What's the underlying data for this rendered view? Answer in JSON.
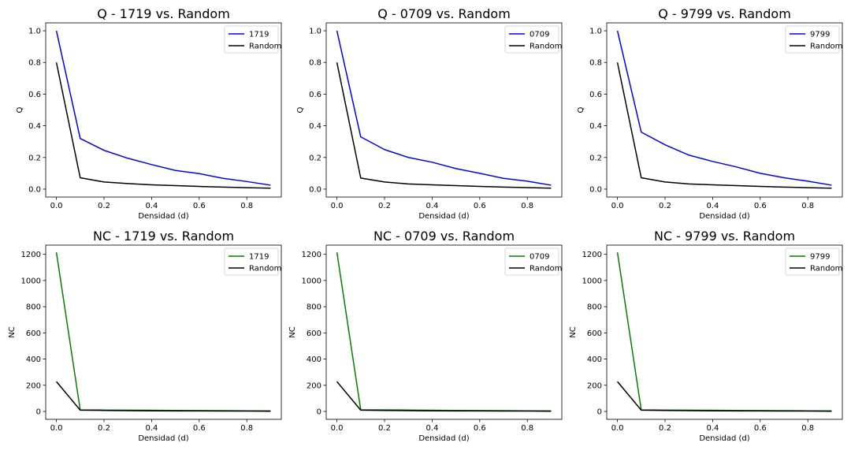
{
  "figure": {
    "background": "#ffffff"
  },
  "chart_data": [
    {
      "type": "line",
      "title": "Q - 1719 vs. Random",
      "xlabel": "Densidad (d)",
      "ylabel": "Q",
      "xlim": [
        -0.045,
        0.945
      ],
      "ylim": [
        -0.05,
        1.05
      ],
      "xticks": [
        0.0,
        0.2,
        0.4,
        0.6,
        0.8
      ],
      "xtick_labels": [
        "0.0",
        "0.2",
        "0.4",
        "0.6",
        "0.8"
      ],
      "yticks": [
        0.0,
        0.2,
        0.4,
        0.6,
        0.8,
        1.0
      ],
      "ytick_labels": [
        "0.0",
        "0.2",
        "0.4",
        "0.6",
        "0.8",
        "1.0"
      ],
      "legend_position": "top-right",
      "grid": false,
      "x": [
        0.0,
        0.1,
        0.2,
        0.3,
        0.4,
        0.5,
        0.6,
        0.7,
        0.8,
        0.9
      ],
      "series": [
        {
          "name": "1719",
          "color": "#0000ff",
          "values": [
            1.0,
            0.32,
            0.245,
            0.195,
            0.155,
            0.118,
            0.098,
            0.068,
            0.048,
            0.025
          ]
        },
        {
          "name": "Random",
          "color": "#000000",
          "values": [
            0.8,
            0.072,
            0.045,
            0.035,
            0.027,
            0.022,
            0.017,
            0.013,
            0.009,
            0.006
          ]
        }
      ]
    },
    {
      "type": "line",
      "title": "Q - 0709 vs. Random",
      "xlabel": "Densidad (d)",
      "ylabel": "Q",
      "xlim": [
        -0.045,
        0.945
      ],
      "ylim": [
        -0.05,
        1.05
      ],
      "xticks": [
        0.0,
        0.2,
        0.4,
        0.6,
        0.8
      ],
      "xtick_labels": [
        "0.0",
        "0.2",
        "0.4",
        "0.6",
        "0.8"
      ],
      "yticks": [
        0.0,
        0.2,
        0.4,
        0.6,
        0.8,
        1.0
      ],
      "ytick_labels": [
        "0.0",
        "0.2",
        "0.4",
        "0.6",
        "0.8",
        "1.0"
      ],
      "legend_position": "top-right",
      "grid": false,
      "x": [
        0.0,
        0.1,
        0.2,
        0.3,
        0.4,
        0.5,
        0.6,
        0.7,
        0.8,
        0.9
      ],
      "series": [
        {
          "name": "0709",
          "color": "#0000ff",
          "values": [
            1.0,
            0.33,
            0.25,
            0.2,
            0.17,
            0.13,
            0.1,
            0.068,
            0.05,
            0.025
          ]
        },
        {
          "name": "Random",
          "color": "#000000",
          "values": [
            0.8,
            0.07,
            0.045,
            0.033,
            0.027,
            0.022,
            0.017,
            0.013,
            0.01,
            0.006
          ]
        }
      ]
    },
    {
      "type": "line",
      "title": "Q - 9799 vs. Random",
      "xlabel": "Densidad (d)",
      "ylabel": "Q",
      "xlim": [
        -0.045,
        0.945
      ],
      "ylim": [
        -0.05,
        1.05
      ],
      "xticks": [
        0.0,
        0.2,
        0.4,
        0.6,
        0.8
      ],
      "xtick_labels": [
        "0.0",
        "0.2",
        "0.4",
        "0.6",
        "0.8"
      ],
      "yticks": [
        0.0,
        0.2,
        0.4,
        0.6,
        0.8,
        1.0
      ],
      "ytick_labels": [
        "0.0",
        "0.2",
        "0.4",
        "0.6",
        "0.8",
        "1.0"
      ],
      "legend_position": "top-right",
      "grid": false,
      "x": [
        0.0,
        0.1,
        0.2,
        0.3,
        0.4,
        0.5,
        0.6,
        0.7,
        0.8,
        0.9
      ],
      "series": [
        {
          "name": "9799",
          "color": "#0000ff",
          "values": [
            1.0,
            0.36,
            0.28,
            0.215,
            0.175,
            0.14,
            0.1,
            0.072,
            0.05,
            0.025
          ]
        },
        {
          "name": "Random",
          "color": "#000000",
          "values": [
            0.8,
            0.072,
            0.045,
            0.033,
            0.027,
            0.022,
            0.017,
            0.013,
            0.009,
            0.006
          ]
        }
      ]
    },
    {
      "type": "line",
      "title": "NC - 1719 vs. Random",
      "xlabel": "Densidad (d)",
      "ylabel": "NC",
      "xlim": [
        -0.045,
        0.945
      ],
      "ylim": [
        -60,
        1270
      ],
      "xticks": [
        0.0,
        0.2,
        0.4,
        0.6,
        0.8
      ],
      "xtick_labels": [
        "0.0",
        "0.2",
        "0.4",
        "0.6",
        "0.8"
      ],
      "yticks": [
        0,
        200,
        400,
        600,
        800,
        1000,
        1200
      ],
      "ytick_labels": [
        "0",
        "200",
        "400",
        "600",
        "800",
        "1000",
        "1200"
      ],
      "legend_position": "top-right",
      "grid": false,
      "x": [
        0.0,
        0.1,
        0.2,
        0.3,
        0.4,
        0.5,
        0.6,
        0.7,
        0.8,
        0.9
      ],
      "series": [
        {
          "name": "1719",
          "color": "#008000",
          "values": [
            1215,
            12,
            11,
            10,
            9,
            8,
            7,
            6,
            5,
            5
          ]
        },
        {
          "name": "Random",
          "color": "#000000",
          "values": [
            228,
            10,
            8,
            6,
            5,
            4,
            4,
            3,
            3,
            2
          ]
        }
      ]
    },
    {
      "type": "line",
      "title": "NC - 0709 vs. Random",
      "xlabel": "Densidad (d)",
      "ylabel": "NC",
      "xlim": [
        -0.045,
        0.945
      ],
      "ylim": [
        -60,
        1270
      ],
      "xticks": [
        0.0,
        0.2,
        0.4,
        0.6,
        0.8
      ],
      "xtick_labels": [
        "0.0",
        "0.2",
        "0.4",
        "0.6",
        "0.8"
      ],
      "yticks": [
        0,
        200,
        400,
        600,
        800,
        1000,
        1200
      ],
      "ytick_labels": [
        "0",
        "200",
        "400",
        "600",
        "800",
        "1000",
        "1200"
      ],
      "legend_position": "top-right",
      "grid": false,
      "x": [
        0.0,
        0.1,
        0.2,
        0.3,
        0.4,
        0.5,
        0.6,
        0.7,
        0.8,
        0.9
      ],
      "series": [
        {
          "name": "0709",
          "color": "#008000",
          "values": [
            1215,
            12,
            12,
            11,
            9,
            8,
            7,
            6,
            5,
            5
          ]
        },
        {
          "name": "Random",
          "color": "#000000",
          "values": [
            228,
            10,
            8,
            6,
            5,
            4,
            4,
            3,
            3,
            2
          ]
        }
      ]
    },
    {
      "type": "line",
      "title": "NC - 9799 vs. Random",
      "xlabel": "Densidad (d)",
      "ylabel": "NC",
      "xlim": [
        -0.045,
        0.945
      ],
      "ylim": [
        -60,
        1270
      ],
      "xticks": [
        0.0,
        0.2,
        0.4,
        0.6,
        0.8
      ],
      "xtick_labels": [
        "0.0",
        "0.2",
        "0.4",
        "0.6",
        "0.8"
      ],
      "yticks": [
        0,
        200,
        400,
        600,
        800,
        1000,
        1200
      ],
      "ytick_labels": [
        "0",
        "200",
        "400",
        "600",
        "800",
        "1000",
        "1200"
      ],
      "legend_position": "top-right",
      "grid": false,
      "x": [
        0.0,
        0.1,
        0.2,
        0.3,
        0.4,
        0.5,
        0.6,
        0.7,
        0.8,
        0.9
      ],
      "series": [
        {
          "name": "9799",
          "color": "#008000",
          "values": [
            1215,
            12,
            11,
            10,
            9,
            8,
            7,
            6,
            5,
            5
          ]
        },
        {
          "name": "Random",
          "color": "#000000",
          "values": [
            228,
            10,
            8,
            6,
            5,
            4,
            4,
            3,
            3,
            2
          ]
        }
      ]
    }
  ]
}
